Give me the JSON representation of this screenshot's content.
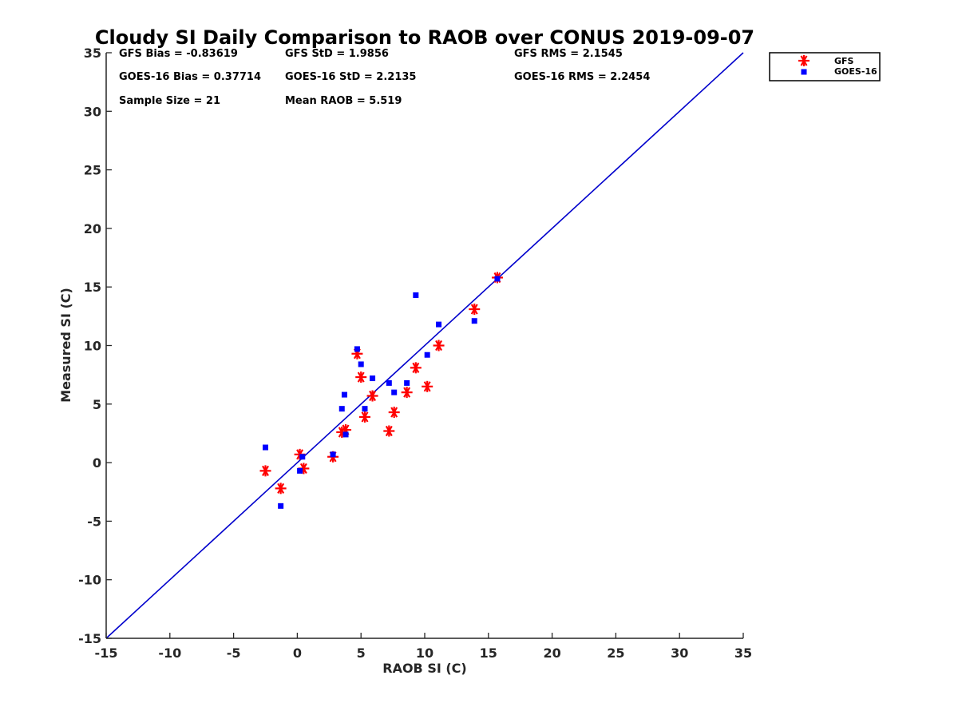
{
  "chart_data": {
    "type": "scatter",
    "title": "Cloudy SI Daily Comparison to RAOB over CONUS 2019-09-07",
    "xlabel": "RAOB SI (C)",
    "ylabel": "Measured SI (C)",
    "xlim": [
      -15,
      35
    ],
    "ylim": [
      -15,
      35
    ],
    "xticks": [
      -15,
      -10,
      -5,
      0,
      5,
      10,
      15,
      20,
      25,
      30,
      35
    ],
    "yticks": [
      -15,
      -10,
      -5,
      0,
      5,
      10,
      15,
      20,
      25,
      30,
      35
    ],
    "grid": false,
    "legend_position": "top-right, outside plot",
    "reference_line": {
      "x": [
        -15,
        35
      ],
      "y": [
        -15,
        35
      ],
      "color": "#0000cc"
    },
    "stats": [
      "GFS Bias = -0.83619",
      "GFS StD = 1.9856",
      "GFS RMS = 2.1545",
      "GOES-16 Bias = 0.37714",
      "GOES-16 StD = 2.2135",
      "GOES-16 RMS = 2.2454",
      "Sample Size = 21",
      "Mean RAOB = 5.519"
    ],
    "series": [
      {
        "name": "GFS",
        "marker": "asterisk",
        "color": "#ff0000",
        "points": [
          [
            -2.5,
            -0.7
          ],
          [
            -1.3,
            -2.2
          ],
          [
            0.2,
            0.7
          ],
          [
            0.5,
            -0.5
          ],
          [
            2.8,
            0.5
          ],
          [
            3.5,
            2.6
          ],
          [
            3.8,
            2.8
          ],
          [
            4.7,
            9.3
          ],
          [
            5.0,
            7.3
          ],
          [
            5.3,
            3.9
          ],
          [
            5.9,
            5.7
          ],
          [
            7.2,
            2.7
          ],
          [
            7.6,
            4.3
          ],
          [
            8.6,
            6.0
          ],
          [
            9.3,
            8.1
          ],
          [
            10.2,
            6.5
          ],
          [
            11.1,
            10.0
          ],
          [
            13.9,
            13.1
          ],
          [
            15.7,
            15.8
          ]
        ]
      },
      {
        "name": "GOES-16",
        "marker": "square",
        "color": "#0000ff",
        "points": [
          [
            -2.5,
            1.3
          ],
          [
            -1.3,
            -3.7
          ],
          [
            0.2,
            -0.7
          ],
          [
            0.4,
            0.5
          ],
          [
            2.8,
            0.7
          ],
          [
            3.5,
            4.6
          ],
          [
            3.7,
            5.8
          ],
          [
            3.8,
            2.4
          ],
          [
            4.7,
            9.7
          ],
          [
            5.0,
            8.4
          ],
          [
            5.3,
            4.6
          ],
          [
            5.9,
            7.2
          ],
          [
            7.2,
            6.8
          ],
          [
            7.6,
            6.0
          ],
          [
            8.6,
            6.8
          ],
          [
            9.3,
            14.3
          ],
          [
            10.2,
            9.2
          ],
          [
            11.1,
            11.8
          ],
          [
            13.9,
            12.1
          ],
          [
            15.7,
            15.7
          ]
        ]
      }
    ]
  }
}
